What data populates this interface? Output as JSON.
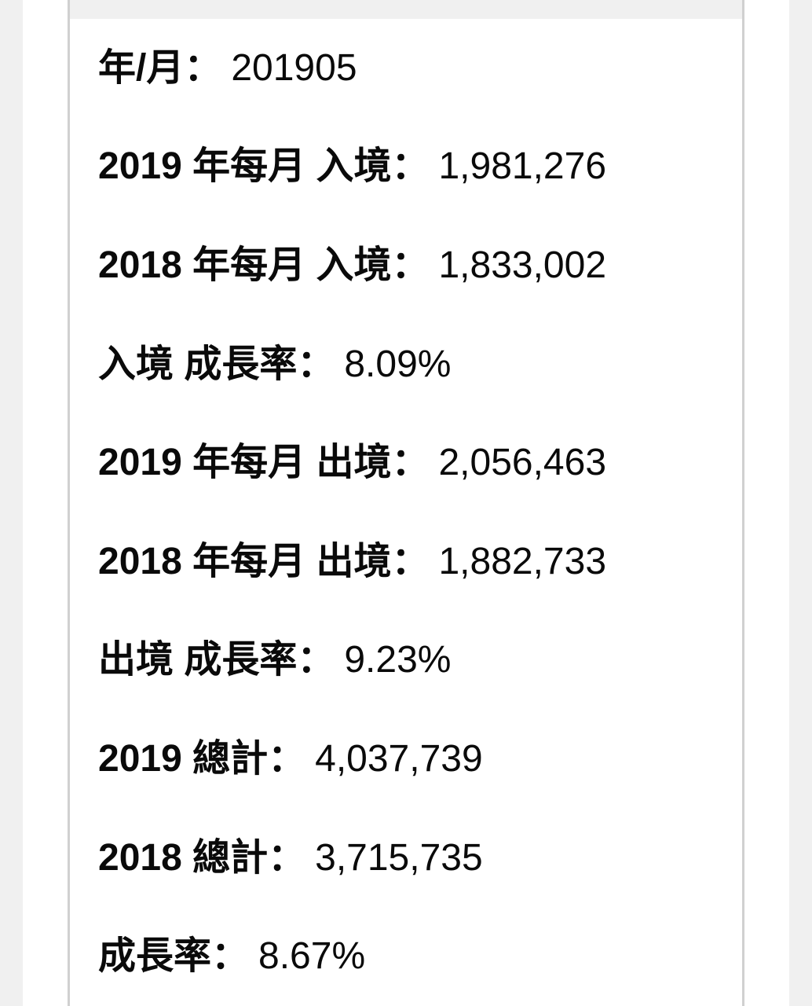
{
  "theme": {
    "page_background": "#f0f0f0",
    "card_background": "#ffffff",
    "table_border_color": "#d0d0d0",
    "text_color": "#0a0a0a"
  },
  "table": {
    "rows": [
      {
        "label": "年/月：",
        "value": "201905"
      },
      {
        "label": "2019 年每月 入境：",
        "value": "1,981,276"
      },
      {
        "label": "2018 年每月 入境：",
        "value": "1,833,002"
      },
      {
        "label": "入境 成長率：",
        "value": "8.09%"
      },
      {
        "label": "2019 年每月 出境：",
        "value": "2,056,463"
      },
      {
        "label": "2018 年每月 出境：",
        "value": "1,882,733"
      },
      {
        "label": "出境 成長率：",
        "value": "9.23%"
      },
      {
        "label": "2019 總計：",
        "value": "4,037,739"
      },
      {
        "label": "2018 總計：",
        "value": "3,715,735"
      },
      {
        "label": "成長率：",
        "value": "8.67%"
      }
    ]
  }
}
